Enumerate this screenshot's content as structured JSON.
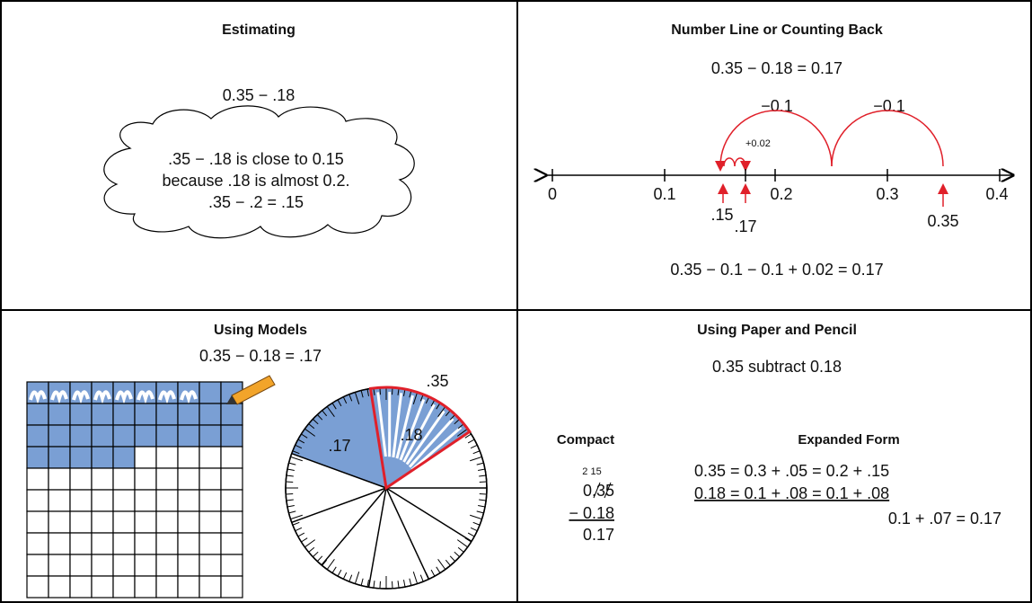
{
  "estimating": {
    "title": "Estimating",
    "expression": "0.35 − .18",
    "cloud_lines": [
      ".35 − .18 is close to 0.15",
      "because .18 is almost 0.2.",
      ".35 − .2 = .15"
    ]
  },
  "number_line": {
    "title": "Number Line or Counting Back",
    "equation": "0.35 − 0.18 = 0.17",
    "jumps": [
      "−0.1",
      "−0.1",
      "+0.02"
    ],
    "ticks": [
      "0",
      "0.1",
      "0.2",
      "0.3",
      "0.4"
    ],
    "markers": [
      ".15",
      ".17",
      "0.35"
    ],
    "summary": "0.35 − 0.1 − 0.1 + 0.02 = 0.17"
  },
  "models": {
    "title": "Using Models",
    "equation": "0.35 − 0.18 = .17",
    "circle_labels": [
      ".35",
      ".17",
      ".18"
    ]
  },
  "paper_pencil": {
    "title": "Using Paper and Pencil",
    "prompt": "0.35 subtract 0.18",
    "compact": {
      "heading": "Compact",
      "regroup": "2 15",
      "lines": [
        "0.35",
        "− 0.18",
        "0.17"
      ]
    },
    "expanded": {
      "heading": "Expanded Form",
      "lines": [
        "0.35 = 0.3 + .05 = 0.2 + .15",
        "0.18 = 0.1 + .08 = 0.1 + .08",
        "0.1 + .07 = 0.17"
      ]
    }
  }
}
